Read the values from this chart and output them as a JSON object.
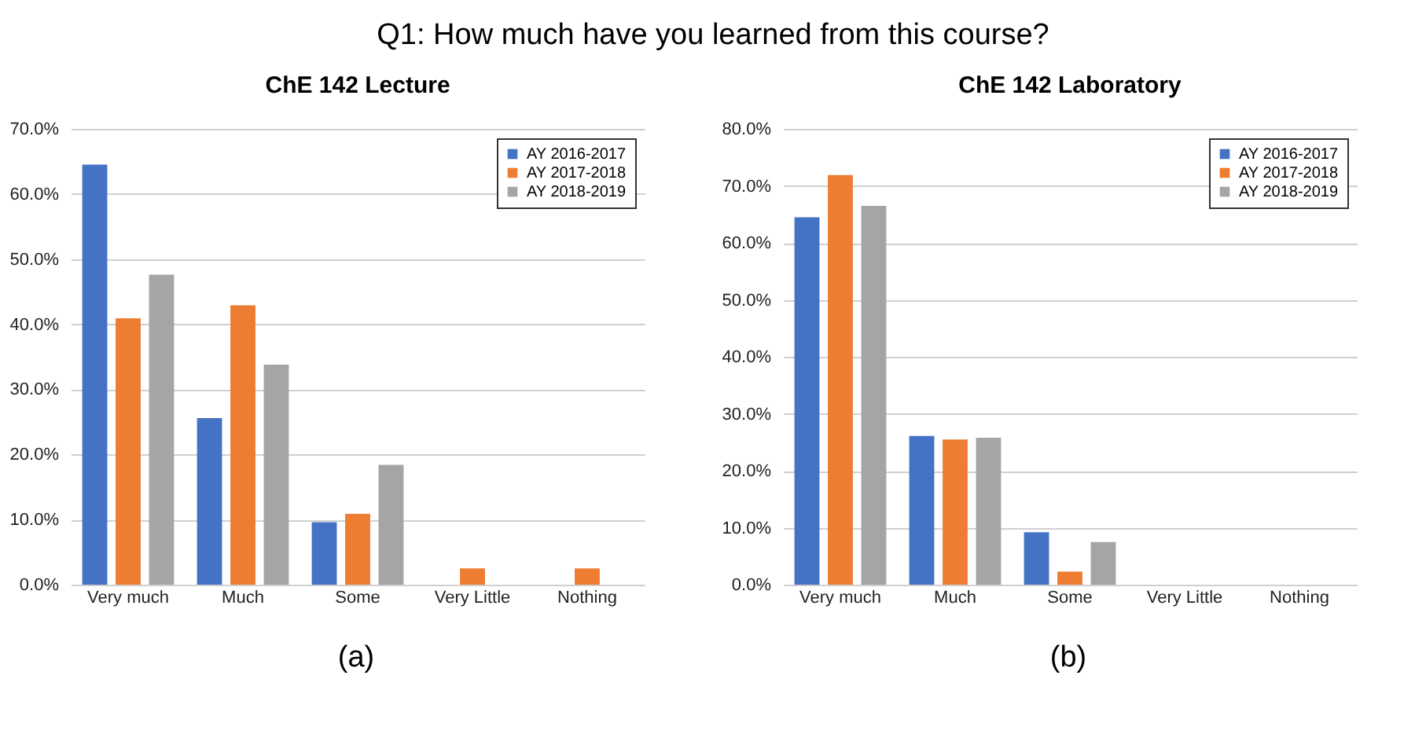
{
  "chart_data": [
    {
      "type": "bar",
      "title": "ChE 142 Lecture",
      "categories": [
        "Very much",
        "Much",
        "Some",
        "Very Little",
        "Nothing"
      ],
      "series": [
        {
          "name": "AY 2016-2017",
          "color": "#4472c4",
          "values": [
            64.5,
            25.6,
            9.6,
            0,
            0
          ]
        },
        {
          "name": "AY 2017-2018",
          "color": "#ed7d31",
          "values": [
            40.9,
            42.9,
            10.9,
            2.5,
            2.5
          ]
        },
        {
          "name": "AY 2018-2019",
          "color": "#a5a5a5",
          "values": [
            47.6,
            33.8,
            18.4,
            0,
            0
          ]
        }
      ],
      "ylim": [
        0,
        70
      ],
      "yticks": [
        {
          "value": 0,
          "label": "0.0%"
        },
        {
          "value": 10,
          "label": "10.0%"
        },
        {
          "value": 20,
          "label": "20.0%"
        },
        {
          "value": 30,
          "label": "30.0%"
        },
        {
          "value": 40,
          "label": "40.0%"
        },
        {
          "value": 50,
          "label": "50.0%"
        },
        {
          "value": 60,
          "label": "60.0%"
        },
        {
          "value": 70,
          "label": "70.0%"
        }
      ],
      "grid": "y",
      "legend": "top right",
      "annotations": [
        "Q1: How much have you learned from this course?",
        "(a)"
      ]
    },
    {
      "type": "bar",
      "title": "ChE 142 Laboratory",
      "categories": [
        "Very much",
        "Much",
        "Some",
        "Very Little",
        "Nothing"
      ],
      "series": [
        {
          "name": "AY 2016-2017",
          "color": "#4472c4",
          "values": [
            64.5,
            26.1,
            9.2,
            0,
            0
          ]
        },
        {
          "name": "AY 2017-2018",
          "color": "#ed7d31",
          "values": [
            71.9,
            25.5,
            2.3,
            0,
            0
          ]
        },
        {
          "name": "AY 2018-2019",
          "color": "#a5a5a5",
          "values": [
            66.5,
            25.8,
            7.5,
            0,
            0
          ]
        }
      ],
      "ylim": [
        0,
        80
      ],
      "yticks": [
        {
          "value": 0,
          "label": "0.0%"
        },
        {
          "value": 10,
          "label": "10.0%"
        },
        {
          "value": 20,
          "label": "20.0%"
        },
        {
          "value": 30,
          "label": "30.0%"
        },
        {
          "value": 40,
          "label": "40.0%"
        },
        {
          "value": 50,
          "label": "50.0%"
        },
        {
          "value": 60,
          "label": "60.0%"
        },
        {
          "value": 70,
          "label": "70.0%"
        },
        {
          "value": 80,
          "label": "80.0%"
        }
      ],
      "grid": "y",
      "legend": "top right",
      "annotations": [
        "(b)"
      ]
    }
  ]
}
